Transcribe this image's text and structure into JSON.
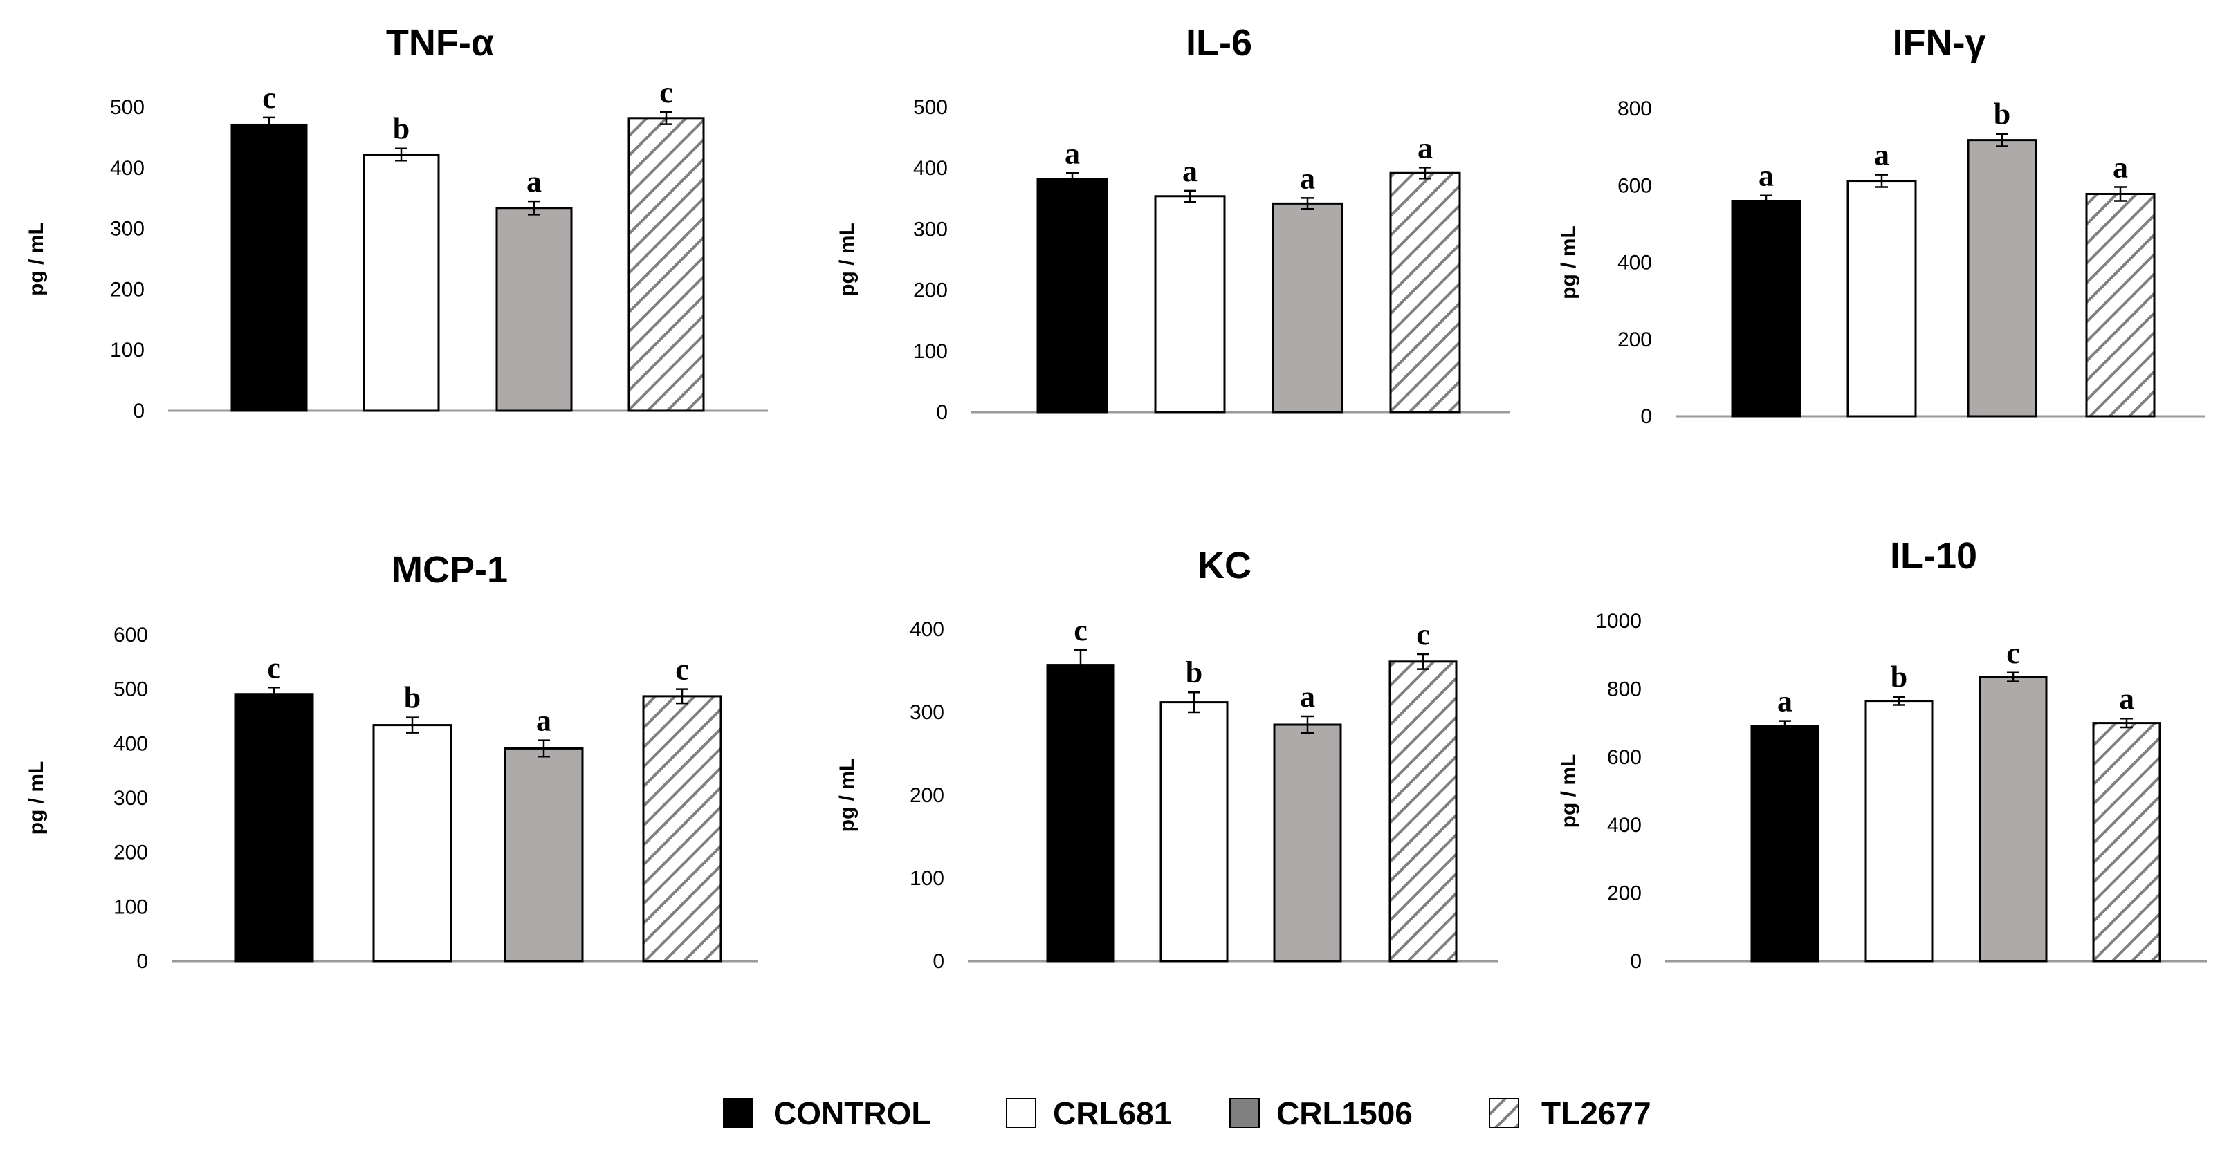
{
  "chart_data": [
    {
      "type": "bar",
      "title": "TNF-α",
      "ylabel": "pg / mL",
      "categories": [
        "CONTROL",
        "CRL681",
        "CRL1506",
        "TL2677"
      ],
      "values": [
        471,
        422,
        334,
        482
      ],
      "errors": [
        12,
        10,
        11,
        10
      ],
      "significance": [
        "c",
        "b",
        "a",
        "c"
      ],
      "yticks": [
        0,
        100,
        200,
        300,
        400,
        500
      ],
      "ylim": [
        0,
        500
      ]
    },
    {
      "type": "bar",
      "title": "IL-6",
      "ylabel": "pg / mL",
      "categories": [
        "CONTROL",
        "CRL681",
        "CRL1506",
        "TL2677"
      ],
      "values": [
        382,
        354,
        342,
        392
      ],
      "errors": [
        10,
        9,
        9,
        9
      ],
      "significance": [
        "a",
        "a",
        "a",
        "a"
      ],
      "yticks": [
        0,
        100,
        200,
        300,
        400,
        500
      ],
      "ylim": [
        0,
        500
      ]
    },
    {
      "type": "bar",
      "title": "IFN-γ",
      "ylabel": "pg / mL",
      "categories": [
        "CONTROL",
        "CRL681",
        "CRL1506",
        "TL2677"
      ],
      "values": [
        560,
        612,
        718,
        578
      ],
      "errors": [
        14,
        16,
        16,
        18
      ],
      "significance": [
        "a",
        "a",
        "b",
        "a"
      ],
      "yticks": [
        0,
        200,
        400,
        600,
        800
      ],
      "ylim": [
        0,
        800
      ]
    },
    {
      "type": "bar",
      "title": "MCP-1",
      "ylabel": "pg / mL",
      "categories": [
        "CONTROL",
        "CRL681",
        "CRL1506",
        "TL2677"
      ],
      "values": [
        491,
        434,
        391,
        487
      ],
      "errors": [
        12,
        14,
        15,
        13
      ],
      "significance": [
        "c",
        "b",
        "a",
        "c"
      ],
      "yticks": [
        0,
        100,
        200,
        300,
        400,
        500,
        600
      ],
      "ylim": [
        0,
        600
      ]
    },
    {
      "type": "bar",
      "title": "KC",
      "ylabel": "pg / mL",
      "categories": [
        "CONTROL",
        "CRL681",
        "CRL1506",
        "TL2677"
      ],
      "values": [
        357,
        312,
        285,
        361
      ],
      "errors": [
        18,
        12,
        10,
        9
      ],
      "significance": [
        "c",
        "b",
        "a",
        "c"
      ],
      "yticks": [
        0,
        100,
        200,
        300,
        400
      ],
      "ylim": [
        0,
        400
      ]
    },
    {
      "type": "bar",
      "title": "IL-10",
      "ylabel": "pg / mL",
      "categories": [
        "CONTROL",
        "CRL681",
        "CRL1506",
        "TL2677"
      ],
      "values": [
        690,
        765,
        835,
        700
      ],
      "errors": [
        16,
        12,
        13,
        13
      ],
      "significance": [
        "a",
        "b",
        "c",
        "a"
      ],
      "yticks": [
        0,
        200,
        400,
        600,
        800,
        1000
      ],
      "ylim": [
        0,
        1000
      ]
    }
  ],
  "legend": {
    "items": [
      {
        "label": "CONTROL",
        "style": "solid-black"
      },
      {
        "label": "CRL681",
        "style": "white"
      },
      {
        "label": "CRL1506",
        "style": "gray"
      },
      {
        "label": "TL2677",
        "style": "hatched"
      }
    ]
  },
  "colors": {
    "control": "#000000",
    "crl681": "#ffffff",
    "crl1506": "#aeaaaa",
    "hatch": "#808080"
  }
}
